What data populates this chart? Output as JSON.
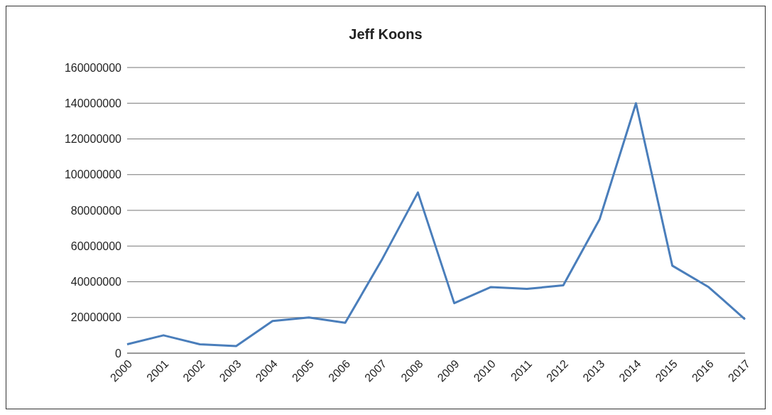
{
  "chart_data": {
    "type": "line",
    "title": "Jeff Koons",
    "categories": [
      "2000",
      "2001",
      "2002",
      "2003",
      "2004",
      "2005",
      "2006",
      "2007",
      "2008",
      "2009",
      "2010",
      "2011",
      "2012",
      "2013",
      "2014",
      "2015",
      "2016",
      "2017"
    ],
    "series": [
      {
        "color": "#4a7ebb",
        "values": [
          5000000,
          10000000,
          5000000,
          4000000,
          18000000,
          20000000,
          17000000,
          52000000,
          90000000,
          28000000,
          37000000,
          36000000,
          38000000,
          75000000,
          140000000,
          49000000,
          37000000,
          19000000
        ]
      }
    ],
    "ylim": [
      0,
      160000000
    ],
    "yticks": [
      0,
      20000000,
      40000000,
      60000000,
      80000000,
      100000000,
      120000000,
      140000000,
      160000000
    ],
    "grid": "y",
    "legend": false,
    "marker": "none",
    "line_style": "solid"
  }
}
